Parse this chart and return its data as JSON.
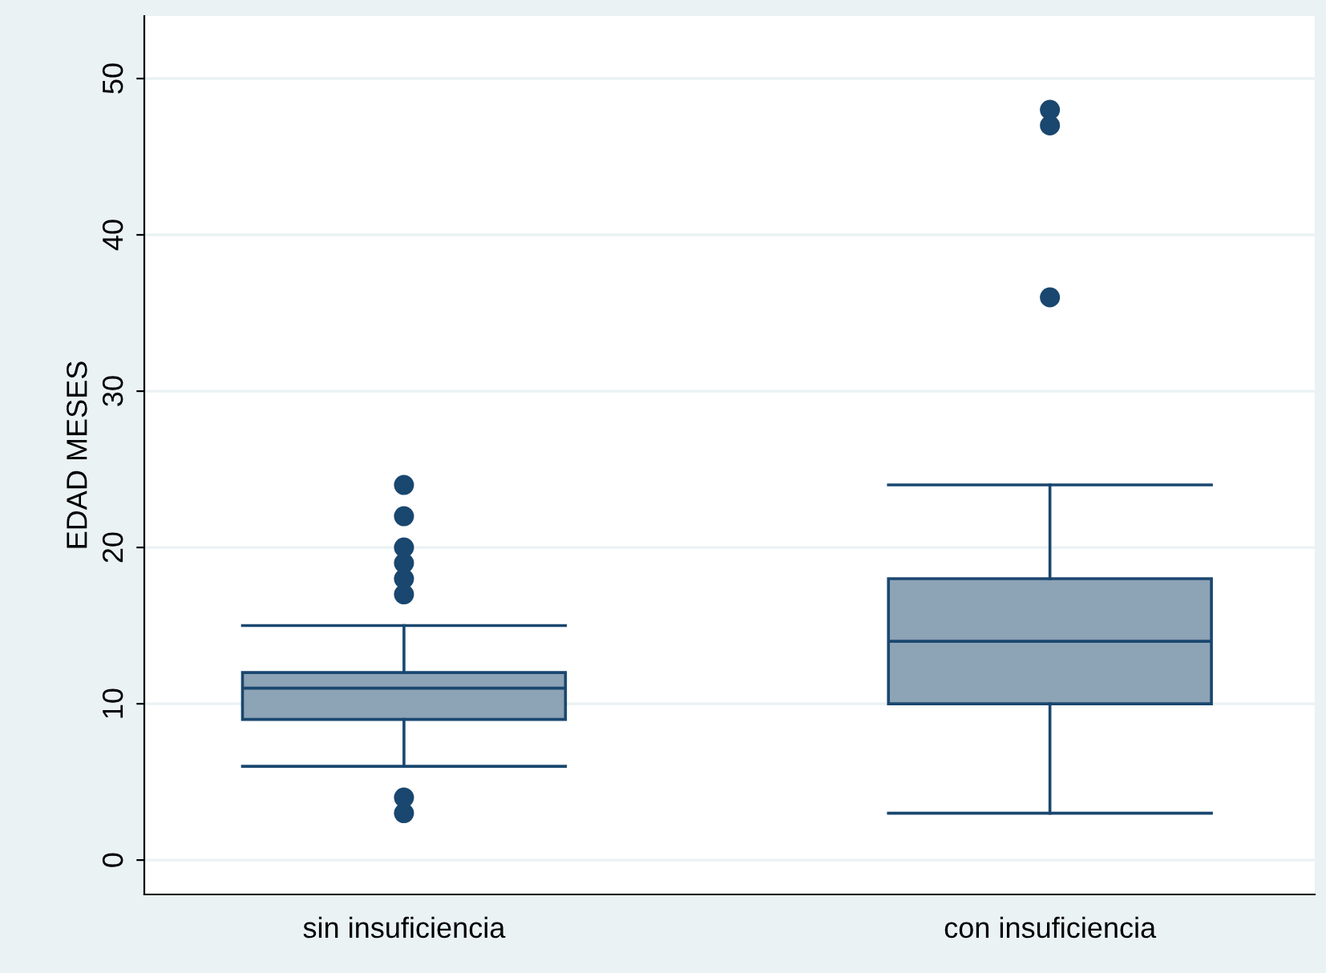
{
  "chart_data": {
    "type": "box",
    "ylabel": "EDAD MESES",
    "categories": [
      "sin insuficiencia",
      "con insuficiencia"
    ],
    "boxes": [
      {
        "low": 6,
        "q1": 9,
        "median": 11,
        "q3": 12,
        "high": 15,
        "outliers": [
          3,
          4,
          17,
          18,
          19,
          20,
          22,
          24
        ]
      },
      {
        "low": 3,
        "q1": 10,
        "median": 14,
        "q3": 18,
        "high": 24,
        "outliers": [
          36,
          47,
          48
        ]
      }
    ],
    "color": "#8da3b6",
    "ylim": [
      -2.2,
      54
    ],
    "yticks": [
      0,
      10,
      20,
      30,
      40,
      50
    ],
    "grid": "y"
  }
}
